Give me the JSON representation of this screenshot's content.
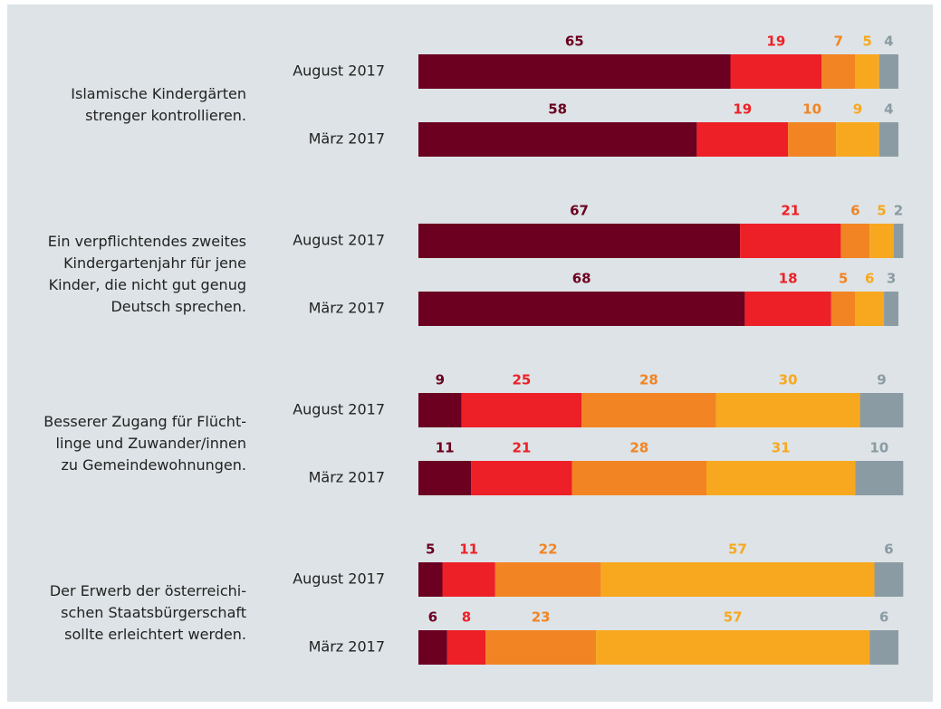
{
  "chart_data": {
    "type": "bar",
    "orientation": "horizontal",
    "stacked": true,
    "xlim": [
      0,
      100
    ],
    "groups": [
      {
        "label": [
          "Islamische Kindergärten",
          "strenger kontrollieren."
        ]
      },
      {
        "label": [
          "Ein verpflichtendes zweites",
          "Kindergartenjahr für jene",
          "Kinder, die nicht gut genug",
          "Deutsch sprechen."
        ]
      },
      {
        "label": [
          "Besserer Zugang für Flücht-",
          "linge und Zuwander/innen",
          "zu Gemeindewohnungen."
        ]
      },
      {
        "label": [
          "Der Erwerb der österreichi-",
          "schen Staatsbürgerschaft",
          "sollte erleichtert werden."
        ]
      }
    ],
    "categories": [
      "August 2017",
      "März 2017",
      "August 2017",
      "März 2017",
      "August 2017",
      "März 2017",
      "August 2017",
      "März 2017"
    ],
    "series": [
      {
        "color": "#6b0020",
        "values": [
          65,
          58,
          67,
          68,
          9,
          11,
          5,
          6
        ]
      },
      {
        "color": "#ed2027",
        "values": [
          19,
          19,
          21,
          18,
          25,
          21,
          11,
          8
        ]
      },
      {
        "color": "#f28423",
        "values": [
          7,
          10,
          6,
          5,
          28,
          28,
          22,
          23
        ]
      },
      {
        "color": "#f8a81e",
        "values": [
          5,
          9,
          5,
          6,
          30,
          31,
          57,
          57
        ]
      },
      {
        "color": "#8b9ba3",
        "values": [
          4,
          4,
          2,
          3,
          9,
          10,
          6,
          6
        ]
      }
    ]
  }
}
